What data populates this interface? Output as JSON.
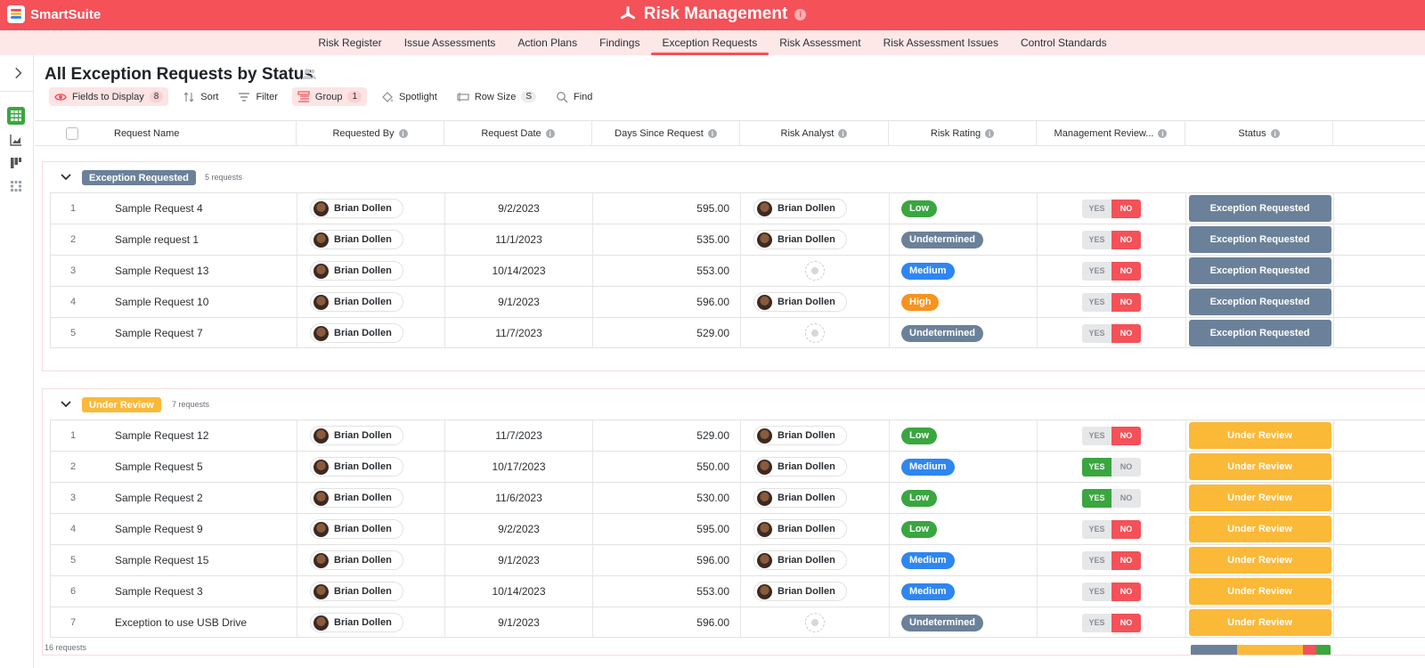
{
  "brand": {
    "name": "SmartSuite"
  },
  "app": {
    "title": "Risk Management"
  },
  "nav": {
    "items": [
      "Risk Register",
      "Issue Assessments",
      "Action Plans",
      "Findings",
      "Exception Requests",
      "Risk Assessment",
      "Risk Assessment Issues",
      "Control Standards"
    ],
    "active": "Exception Requests"
  },
  "view": {
    "title": "All Exception Requests by Status"
  },
  "toolbar": {
    "fields_label": "Fields to Display",
    "fields_count": "8",
    "sort_label": "Sort",
    "filter_label": "Filter",
    "group_label": "Group",
    "group_count": "1",
    "spotlight_label": "Spotlight",
    "rowsize_label": "Row Size",
    "rowsize_value": "S",
    "find_label": "Find"
  },
  "columns": [
    "Request Name",
    "Requested By",
    "Request Date",
    "Days Since Request",
    "Risk Analyst",
    "Risk Rating",
    "Management Review...",
    "Status"
  ],
  "colors": {
    "brand": "#f45158",
    "exception_requested": "#6b819a",
    "under_review": "#fbb938",
    "low": "#3aa640",
    "medium": "#2e86f0",
    "high": "#f7931e",
    "undetermined": "#6b819a"
  },
  "groups": [
    {
      "label": "Exception Requested",
      "count": "5 requests",
      "color": "#6b819a",
      "rows": [
        {
          "num": "1",
          "name": "Sample Request 4",
          "by": "Brian Dollen",
          "date": "9/2/2023",
          "days": "595.00",
          "analyst": "Brian Dollen",
          "rating": "Low",
          "rating_color": "#3aa640",
          "mgmt": "NO",
          "status": "Exception Requested"
        },
        {
          "num": "2",
          "name": "Sample request 1",
          "by": "Brian Dollen",
          "date": "11/1/2023",
          "days": "535.00",
          "analyst": "Brian Dollen",
          "rating": "Undetermined",
          "rating_color": "#6b819a",
          "mgmt": "NO",
          "status": "Exception Requested"
        },
        {
          "num": "3",
          "name": "Sample Request 13",
          "by": "Brian Dollen",
          "date": "10/14/2023",
          "days": "553.00",
          "analyst": "",
          "rating": "Medium",
          "rating_color": "#2e86f0",
          "mgmt": "NO",
          "status": "Exception Requested"
        },
        {
          "num": "4",
          "name": "Sample Request 10",
          "by": "Brian Dollen",
          "date": "9/1/2023",
          "days": "596.00",
          "analyst": "Brian Dollen",
          "rating": "High",
          "rating_color": "#f7931e",
          "mgmt": "NO",
          "status": "Exception Requested"
        },
        {
          "num": "5",
          "name": "Sample Request 7",
          "by": "Brian Dollen",
          "date": "11/7/2023",
          "days": "529.00",
          "analyst": "",
          "rating": "Undetermined",
          "rating_color": "#6b819a",
          "mgmt": "NO",
          "status": "Exception Requested"
        }
      ]
    },
    {
      "label": "Under Review",
      "count": "7 requests",
      "color": "#fbb938",
      "rows": [
        {
          "num": "1",
          "name": "Sample Request 12",
          "by": "Brian Dollen",
          "date": "11/7/2023",
          "days": "529.00",
          "analyst": "Brian Dollen",
          "rating": "Low",
          "rating_color": "#3aa640",
          "mgmt": "NO",
          "status": "Under Review"
        },
        {
          "num": "2",
          "name": "Sample Request 5",
          "by": "Brian Dollen",
          "date": "10/17/2023",
          "days": "550.00",
          "analyst": "Brian Dollen",
          "rating": "Medium",
          "rating_color": "#2e86f0",
          "mgmt": "YES",
          "status": "Under Review"
        },
        {
          "num": "3",
          "name": "Sample Request 2",
          "by": "Brian Dollen",
          "date": "11/6/2023",
          "days": "530.00",
          "analyst": "Brian Dollen",
          "rating": "Low",
          "rating_color": "#3aa640",
          "mgmt": "YES",
          "status": "Under Review"
        },
        {
          "num": "4",
          "name": "Sample Request 9",
          "by": "Brian Dollen",
          "date": "9/2/2023",
          "days": "595.00",
          "analyst": "Brian Dollen",
          "rating": "Low",
          "rating_color": "#3aa640",
          "mgmt": "NO",
          "status": "Under Review"
        },
        {
          "num": "5",
          "name": "Sample Request 15",
          "by": "Brian Dollen",
          "date": "9/1/2023",
          "days": "596.00",
          "analyst": "Brian Dollen",
          "rating": "Medium",
          "rating_color": "#2e86f0",
          "mgmt": "NO",
          "status": "Under Review"
        },
        {
          "num": "6",
          "name": "Sample Request 3",
          "by": "Brian Dollen",
          "date": "10/14/2023",
          "days": "553.00",
          "analyst": "Brian Dollen",
          "rating": "Medium",
          "rating_color": "#2e86f0",
          "mgmt": "NO",
          "status": "Under Review"
        },
        {
          "num": "7",
          "name": "Exception to use USB Drive",
          "by": "Brian Dollen",
          "date": "9/1/2023",
          "days": "596.00",
          "analyst": "",
          "rating": "Undetermined",
          "rating_color": "#6b819a",
          "mgmt": "NO",
          "status": "Under Review"
        }
      ]
    }
  ],
  "mgmt_labels": {
    "yes": "YES",
    "no": "NO"
  },
  "footer": {
    "count": "16 requests"
  },
  "summary_segments": [
    {
      "color": "#6b819a",
      "share": 5
    },
    {
      "color": "#fbb938",
      "share": 7
    },
    {
      "color": "#f45158",
      "share": 1.5
    },
    {
      "color": "#3aa640",
      "share": 1.5
    }
  ]
}
